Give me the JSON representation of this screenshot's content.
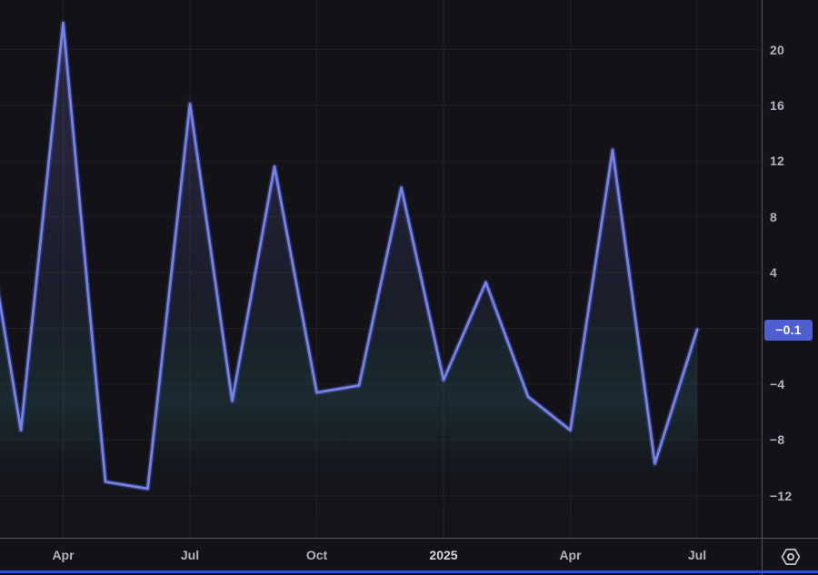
{
  "chart_data": {
    "type": "area",
    "title": "",
    "xlabel": "",
    "ylabel": "",
    "x": [
      "Feb 2024",
      "Mar 2024",
      "Apr 2024",
      "May 2024",
      "Jun 2024",
      "Jul 2024",
      "Aug 2024",
      "Sep 2024",
      "Oct 2024",
      "Nov 2024",
      "Dec 2024",
      "Jan 2025",
      "Feb 2025",
      "Mar 2025",
      "Apr 2025",
      "May 2025",
      "Jun 2025",
      "Jul 2025"
    ],
    "values": [
      11.1,
      -7.3,
      21.9,
      -11.0,
      -11.5,
      16.1,
      -5.2,
      11.6,
      -4.6,
      -4.1,
      10.1,
      -3.7,
      3.3,
      -4.9,
      -7.3,
      12.8,
      -9.7,
      -0.1
    ],
    "ylim": [
      -14.9,
      23.6
    ],
    "grid": true,
    "legend_position": "none",
    "y_ticks": [
      {
        "label": "20",
        "value": 20
      },
      {
        "label": "16",
        "value": 16
      },
      {
        "label": "12",
        "value": 12
      },
      {
        "label": "8",
        "value": 8
      },
      {
        "label": "4",
        "value": 4
      },
      {
        "label": "−4",
        "value": -4
      },
      {
        "label": "−8",
        "value": -8
      },
      {
        "label": "−12",
        "value": -12
      }
    ],
    "grid_extra_values": [
      0
    ],
    "x_ticks": [
      {
        "label": "Apr",
        "index": 2,
        "year": false
      },
      {
        "label": "Jul",
        "index": 5,
        "year": false
      },
      {
        "label": "Oct",
        "index": 8,
        "year": false
      },
      {
        "label": "2025",
        "index": 11,
        "year": true
      },
      {
        "label": "Apr",
        "index": 14,
        "year": false
      },
      {
        "label": "Jul",
        "index": 17,
        "year": false
      }
    ],
    "last_price": -0.1,
    "last_price_label": "−0.1"
  },
  "corner": {
    "icon": "hexagon-settings-icon"
  },
  "colors": {
    "background": "#131317",
    "line": "#7583ea",
    "line_glow": "#5a64dc",
    "fill_purple": "#827deb",
    "fill_teal": "#3a96aa",
    "grid": "#f0f3fa",
    "axis_text": "#b2b5be",
    "year_text": "#d6d8de",
    "axis_border": "#50535c",
    "price_label_bg": "#4f5ed2",
    "accent_bar": "#2b50dc",
    "icon_color": "#cbced6"
  }
}
